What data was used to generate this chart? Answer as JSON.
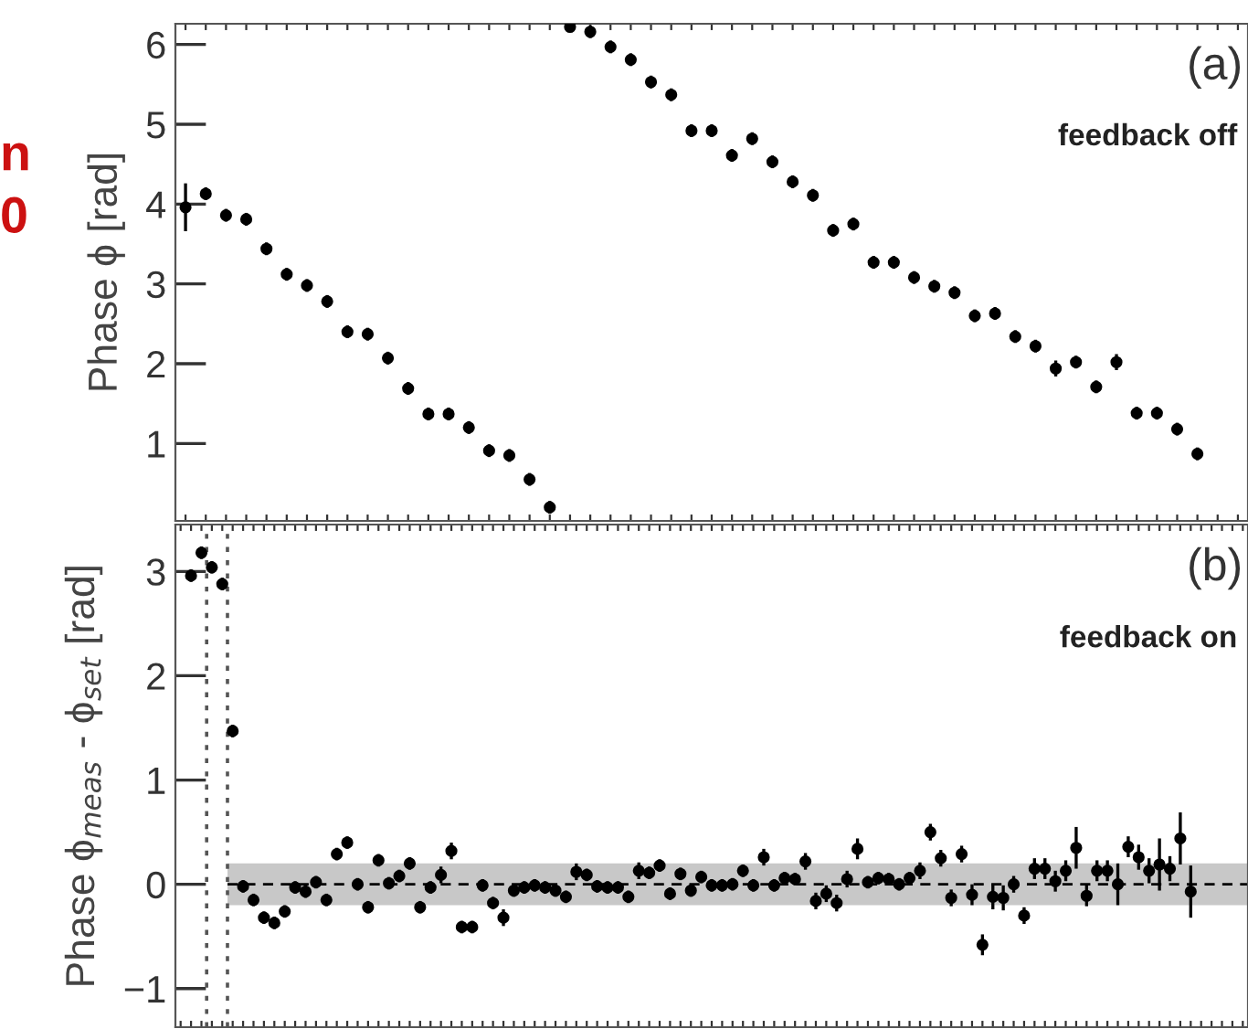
{
  "chart_data": [
    {
      "type": "scatter",
      "ylabel": "Phase ϕ [rad]",
      "annotations": [
        "(a)",
        "feedback off",
        "n",
        "0"
      ],
      "categories": [
        null,
        null,
        null,
        null,
        null,
        null,
        null,
        null,
        null,
        null,
        null,
        null,
        null,
        null,
        null,
        null,
        null,
        null,
        null,
        null,
        null,
        null,
        null,
        null,
        null,
        null,
        null,
        null,
        null,
        null,
        null,
        null,
        null,
        null,
        null,
        null,
        null,
        null,
        null,
        null,
        null,
        null,
        null,
        null,
        null,
        null,
        null,
        null,
        null,
        null,
        null,
        null,
        null
      ],
      "series": [
        {
          "color": "#000000",
          "values": [
            3.96,
            4.13,
            3.86,
            3.81,
            3.44,
            3.12,
            2.98,
            2.78,
            2.4,
            2.37,
            2.07,
            1.69,
            1.37,
            1.37,
            1.2,
            0.91,
            0.85,
            0.55,
            0.2,
            null,
            null,
            null,
            null,
            null,
            null,
            null,
            null,
            null,
            null,
            null,
            null,
            null,
            null,
            null,
            null,
            null,
            null,
            null,
            null,
            null,
            null,
            null,
            null,
            null,
            null,
            null,
            null,
            null,
            null,
            null,
            null,
            null,
            null
          ],
          "errors": [
            0.3,
            0.08,
            0.08,
            0.08,
            0.08,
            0.08,
            0.08,
            0.08,
            0.08,
            0.08,
            0.08,
            0.08,
            0.08,
            0.08,
            0.08,
            0.08,
            0.08,
            0.08,
            0.08,
            null,
            null,
            null,
            null,
            null,
            null,
            null,
            null,
            null,
            null,
            null,
            null,
            null,
            null,
            null,
            null,
            null,
            null,
            null,
            null,
            null,
            null,
            null,
            null,
            null,
            null,
            null,
            null,
            null,
            null,
            null,
            null,
            null,
            null
          ]
        },
        {
          "color": "#000000",
          "values": [
            null,
            null,
            null,
            null,
            null,
            null,
            null,
            null,
            null,
            null,
            null,
            null,
            null,
            null,
            null,
            null,
            null,
            null,
            null,
            6.22,
            6.16,
            5.97,
            5.81,
            5.53,
            5.37,
            4.92,
            4.92,
            4.61,
            4.82,
            4.53,
            4.28,
            4.11,
            3.67,
            3.75,
            3.27,
            3.27,
            3.08,
            2.97,
            2.89,
            2.6,
            2.63,
            2.34,
            2.22,
            1.94,
            2.02,
            1.71,
            2.02,
            1.38,
            1.38,
            1.18,
            0.87,
            null,
            null
          ],
          "errors": [
            null,
            null,
            null,
            null,
            null,
            null,
            null,
            null,
            null,
            null,
            null,
            null,
            null,
            null,
            null,
            null,
            null,
            null,
            null,
            0.03,
            0.08,
            0.08,
            0.08,
            0.08,
            0.08,
            0.08,
            0.08,
            0.08,
            0.08,
            0.08,
            0.08,
            0.08,
            0.08,
            0.08,
            0.08,
            0.08,
            0.08,
            0.08,
            0.08,
            0.08,
            0.08,
            0.08,
            0.08,
            0.1,
            0.08,
            0.08,
            0.1,
            0.08,
            0.08,
            0.08,
            0.08,
            null,
            null
          ]
        }
      ],
      "marker": "circle",
      "ylim": [
        0.03,
        6.26
      ],
      "yticks": [
        1,
        2,
        3,
        4,
        5,
        6
      ],
      "tick_labels": "y"
    },
    {
      "type": "scatter",
      "ylabel": "Phase ϕ$_{meas}$ - ϕ$_{set}$ [rad]",
      "annotations": [
        "(b)",
        "feedback on"
      ],
      "categories": [
        null,
        null,
        null,
        null,
        null,
        null,
        null,
        null,
        null,
        null,
        null,
        null,
        null,
        null,
        null,
        null,
        null,
        null,
        null,
        null,
        null,
        null,
        null,
        null,
        null,
        null,
        null,
        null,
        null,
        null,
        null,
        null,
        null,
        null,
        null,
        null,
        null,
        null,
        null,
        null,
        null,
        null,
        null,
        null,
        null,
        null,
        null,
        null,
        null,
        null,
        null,
        null,
        null,
        null,
        null,
        null,
        null,
        null,
        null,
        null,
        null,
        null,
        null,
        null,
        null,
        null,
        null,
        null,
        null,
        null,
        null,
        null,
        null,
        null,
        null,
        null,
        null,
        null,
        null,
        null,
        null,
        null,
        null,
        null,
        null,
        null,
        null,
        null,
        null,
        null,
        null,
        null,
        null,
        null,
        null,
        null,
        null,
        null,
        null,
        null,
        null,
        null,
        null
      ],
      "series": [
        {
          "color": "#000000",
          "values": [
            null,
            2.96,
            3.18,
            3.04,
            2.88,
            1.47,
            -0.02,
            -0.15,
            -0.32,
            -0.37,
            -0.26,
            -0.03,
            -0.07,
            0.02,
            -0.15,
            0.29,
            0.4,
            0.0,
            -0.22,
            0.23,
            0.01,
            0.08,
            0.2,
            -0.22,
            -0.03,
            0.09,
            0.32,
            -0.41,
            -0.41,
            -0.01,
            -0.18,
            -0.32,
            -0.06,
            -0.03,
            -0.01,
            -0.03,
            -0.06,
            -0.12,
            0.12,
            0.09,
            -0.02,
            -0.03,
            -0.03,
            -0.12,
            0.13,
            0.11,
            0.18,
            -0.09,
            0.1,
            -0.06,
            0.07,
            -0.01,
            -0.01,
            0.0,
            0.13,
            -0.01,
            0.26,
            -0.01,
            0.06,
            0.05,
            0.22,
            -0.16,
            -0.09,
            -0.18,
            0.05,
            0.34,
            0.02,
            0.06,
            0.05,
            0.0,
            0.06,
            0.13,
            0.5,
            0.25,
            -0.13,
            0.29,
            -0.1,
            -0.58,
            -0.12,
            -0.13,
            0.0,
            -0.3,
            0.15,
            0.15,
            0.03,
            0.13,
            0.35,
            -0.11,
            0.13,
            0.13,
            0.0,
            0.36,
            0.26,
            0.13,
            0.19,
            0.15,
            0.44,
            -0.07,
            null,
            null,
            null,
            null,
            null
          ],
          "errors": [
            null,
            0.06,
            0.06,
            0.06,
            0.06,
            0.06,
            0.06,
            0.06,
            0.06,
            0.06,
            0.06,
            0.06,
            0.06,
            0.06,
            0.06,
            0.06,
            0.06,
            0.06,
            0.06,
            0.06,
            0.06,
            0.06,
            0.06,
            0.06,
            0.06,
            0.08,
            0.08,
            0.06,
            0.06,
            0.06,
            0.06,
            0.08,
            0.06,
            0.06,
            0.06,
            0.06,
            0.06,
            0.06,
            0.08,
            0.06,
            0.06,
            0.06,
            0.06,
            0.06,
            0.08,
            0.06,
            0.06,
            0.06,
            0.06,
            0.06,
            0.06,
            0.06,
            0.06,
            0.06,
            0.06,
            0.06,
            0.08,
            0.06,
            0.06,
            0.06,
            0.08,
            0.08,
            0.08,
            0.08,
            0.08,
            0.1,
            0.06,
            0.06,
            0.06,
            0.06,
            0.06,
            0.08,
            0.08,
            0.08,
            0.08,
            0.08,
            0.1,
            0.1,
            0.12,
            0.12,
            0.08,
            0.08,
            0.1,
            0.1,
            0.1,
            0.1,
            0.2,
            0.1,
            0.1,
            0.1,
            0.2,
            0.1,
            0.12,
            0.12,
            0.25,
            0.12,
            0.25,
            0.25,
            null,
            null,
            null,
            null,
            null
          ]
        }
      ],
      "marker": "circle",
      "ylim": [
        -1.37,
        3.45
      ],
      "yticks": [
        {
          "value": -1,
          "label": "−1"
        },
        0,
        1,
        2,
        3
      ],
      "tick_labels": "y",
      "ref_lines": [
        {
          "axis": "y",
          "value": 0,
          "line_style": "dashed",
          "color": "#000000"
        }
      ],
      "bands": [
        {
          "axis": "y",
          "from": -0.2,
          "to": 0.2,
          "color": "#c8c8c8"
        }
      ]
    }
  ]
}
